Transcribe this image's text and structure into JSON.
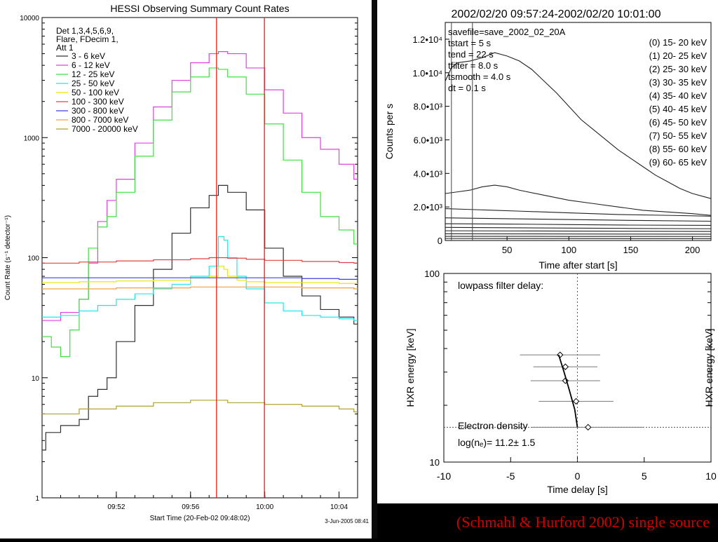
{
  "caption": "(Schmahl & Hurford 2002) single source",
  "chart_data": [
    {
      "type": "line",
      "title": "HESSI Observing Summary Count Rates",
      "xlabel": "Start Time (20-Feb-02 09:48:02)",
      "ylabel": "Count Rate (s⁻¹ detector⁻¹)",
      "footer": "3-Jun-2005 08:41",
      "yscale": "log",
      "ylim": [
        1,
        10000
      ],
      "xlim_min": [
        0,
        17
      ],
      "x_tick_labels": [
        "09:52",
        "09:56",
        "10:00",
        "10:04"
      ],
      "x_tick_values": [
        4,
        8,
        12,
        16
      ],
      "y_tick_labels": [
        "1",
        "10",
        "100",
        "1000",
        "10000"
      ],
      "y_tick_values": [
        1,
        10,
        100,
        1000,
        10000
      ],
      "legend_header": [
        "Det 1,3,4,5,6,9,",
        "Flare, FDecim 1,",
        "Att 1"
      ],
      "vertical_markers_min": [
        9.4,
        11.98
      ],
      "marker_color": "#e02020",
      "series": [
        {
          "name": "3 - 6 keV",
          "color": "#303030",
          "x": [
            0,
            0.2,
            1,
            1.6,
            2,
            2.5,
            3,
            3.5,
            4,
            5,
            6,
            7,
            8,
            9,
            9.5,
            10,
            11,
            12,
            13,
            14,
            15,
            16,
            16.8
          ],
          "y": [
            2.5,
            3.5,
            4,
            4,
            4.5,
            7,
            8,
            10,
            20,
            40,
            80,
            160,
            260,
            330,
            400,
            350,
            250,
            120,
            70,
            48,
            37,
            32,
            28
          ]
        },
        {
          "name": "6 - 12 keV",
          "color": "#e040e0",
          "x": [
            0,
            1,
            2,
            2.5,
            3,
            3.5,
            4,
            5,
            6,
            7,
            8,
            9,
            9.5,
            10,
            11,
            12,
            13,
            14,
            15,
            16,
            16.8
          ],
          "y": [
            30,
            35,
            45,
            90,
            200,
            300,
            450,
            900,
            1800,
            3000,
            4200,
            5000,
            5200,
            5000,
            3800,
            2500,
            1600,
            1000,
            800,
            600,
            450
          ]
        },
        {
          "name": "12 - 25 keV",
          "color": "#40e040",
          "x": [
            0,
            0.5,
            1,
            1.5,
            2,
            2.5,
            3,
            3.5,
            4,
            5,
            6,
            7,
            8,
            9,
            9.5,
            10,
            11,
            12,
            13,
            14,
            15,
            16,
            16.8
          ],
          "y": [
            22,
            18,
            15,
            25,
            45,
            120,
            180,
            220,
            350,
            700,
            1400,
            2400,
            3200,
            3800,
            3700,
            3200,
            2300,
            1300,
            650,
            350,
            220,
            170,
            130
          ]
        },
        {
          "name": "25 - 50 keV",
          "color": "#20e8e8",
          "x": [
            0,
            1,
            2,
            3,
            4,
            5,
            6,
            7,
            8,
            9,
            9.5,
            9.8,
            10,
            10.5,
            11,
            12,
            13,
            14,
            15,
            16,
            16.8
          ],
          "y": [
            32,
            33,
            36,
            40,
            45,
            50,
            55,
            60,
            70,
            85,
            150,
            140,
            100,
            70,
            55,
            42,
            36,
            33,
            32,
            31,
            30
          ]
        },
        {
          "name": "50 - 100 keV",
          "color": "#e8e800",
          "x": [
            0,
            2,
            4,
            6,
            8,
            9,
            9.5,
            9.8,
            10,
            10.5,
            11,
            12,
            14,
            16,
            16.8
          ],
          "y": [
            62,
            63,
            64,
            65,
            68,
            70,
            85,
            80,
            70,
            65,
            63,
            62,
            62,
            61,
            61
          ]
        },
        {
          "name": "100 - 300 keV",
          "color": "#e04040",
          "x": [
            0,
            2,
            4,
            6,
            8,
            9,
            10,
            11,
            12,
            14,
            16,
            16.8
          ],
          "y": [
            90,
            92,
            94,
            96,
            98,
            100,
            99,
            97,
            95,
            93,
            91,
            90
          ]
        },
        {
          "name": "300 - 800 keV",
          "color": "#4040e0",
          "x": [
            0,
            2,
            4,
            6,
            8,
            10,
            12,
            14,
            16,
            16.8
          ],
          "y": [
            68,
            68,
            68,
            68,
            68,
            68,
            68,
            67,
            66,
            66
          ]
        },
        {
          "name": "800 - 7000 keV",
          "color": "#f0a040",
          "x": [
            0,
            2,
            4,
            6,
            8,
            10,
            12,
            14,
            16,
            16.8
          ],
          "y": [
            55,
            55,
            56,
            56,
            57,
            57,
            57,
            56,
            56,
            55
          ]
        },
        {
          "name": "7000 - 20000 keV",
          "color": "#b0a030",
          "x": [
            0,
            2,
            4,
            6,
            8,
            10,
            12,
            14,
            16,
            16.8
          ],
          "y": [
            5,
            5.5,
            5.8,
            6.2,
            6.5,
            6.2,
            6,
            5.8,
            5.5,
            5.2
          ]
        }
      ]
    },
    {
      "type": "line",
      "title": "2002/02/20 09:57:24-2002/02/20 10:01:00",
      "xlabel": "Time after start [s]",
      "ylabel": "Counts per s",
      "xlim": [
        0,
        215
      ],
      "ylim": [
        0,
        13000
      ],
      "x_tick_labels": [
        "50",
        "100",
        "150",
        "200"
      ],
      "x_tick_values": [
        50,
        100,
        150,
        200
      ],
      "y_tick_labels": [
        "0",
        "2.0•10³",
        "4.0•10³",
        "6.0•10³",
        "8.0•10³",
        "1.0•10⁴",
        "1.2•10⁴"
      ],
      "y_tick_values": [
        0,
        2000,
        4000,
        6000,
        8000,
        10000,
        12000
      ],
      "info_text": [
        "savefile=save_2002_02_20A",
        "tstart  =    5 s",
        "tend    =   22 s",
        "tfilter =  8.0 s",
        "tsmooth =  4.0 s",
        "dt      =  0.1 s"
      ],
      "legend": [
        "(0)  15- 20 keV",
        "(1)  20- 25 keV",
        "(2)  25- 30 keV",
        "(3)  30- 35 keV",
        "(4)  35- 40 keV",
        "(5)  40- 45 keV",
        "(6)  45- 50 keV",
        "(7)  50- 55 keV",
        "(8)  55- 60 keV",
        "(9)  60- 65 keV"
      ],
      "vertical_markers_s": [
        5,
        22
      ],
      "series": [
        {
          "x": [
            0,
            5,
            10,
            20,
            30,
            40,
            50,
            60,
            70,
            80,
            90,
            100,
            110,
            120,
            130,
            140,
            150,
            160,
            170,
            180,
            190,
            200,
            210,
            215
          ],
          "y": [
            9500,
            10300,
            10600,
            10700,
            10900,
            11200,
            11000,
            10700,
            10200,
            9500,
            8800,
            8000,
            7200,
            6600,
            6000,
            5400,
            4900,
            4400,
            3900,
            3500,
            3100,
            2800,
            2600,
            2500
          ]
        },
        {
          "x": [
            0,
            10,
            20,
            30,
            40,
            50,
            60,
            80,
            100,
            120,
            140,
            160,
            180,
            200,
            215
          ],
          "y": [
            2800,
            2900,
            3000,
            3200,
            3300,
            3200,
            3000,
            2700,
            2400,
            2200,
            2000,
            1800,
            1700,
            1600,
            1500
          ]
        },
        {
          "x": [
            0,
            20,
            40,
            60,
            100,
            140,
            180,
            215
          ],
          "y": [
            1900,
            1850,
            1800,
            1750,
            1650,
            1550,
            1500,
            1450
          ]
        },
        {
          "x": [
            0,
            50,
            100,
            150,
            215
          ],
          "y": [
            1350,
            1300,
            1250,
            1200,
            1150
          ]
        },
        {
          "x": [
            0,
            50,
            100,
            150,
            215
          ],
          "y": [
            1000,
            980,
            950,
            920,
            900
          ]
        },
        {
          "x": [
            0,
            50,
            100,
            150,
            215
          ],
          "y": [
            780,
            760,
            740,
            720,
            700
          ]
        },
        {
          "x": [
            0,
            50,
            100,
            150,
            215
          ],
          "y": [
            580,
            570,
            560,
            550,
            540
          ]
        },
        {
          "x": [
            0,
            50,
            100,
            150,
            215
          ],
          "y": [
            400,
            395,
            390,
            385,
            380
          ]
        },
        {
          "x": [
            0,
            50,
            100,
            150,
            215
          ],
          "y": [
            250,
            248,
            245,
            242,
            240
          ]
        },
        {
          "x": [
            0,
            50,
            100,
            150,
            215
          ],
          "y": [
            120,
            118,
            116,
            114,
            112
          ]
        }
      ]
    },
    {
      "type": "scatter",
      "title": "lowpass filter delay:",
      "xlabel": "Time delay [s]",
      "ylabel": "HXR energy [keV]",
      "ylabel_right": "HXR energy [keV]",
      "yscale": "log",
      "xlim": [
        -10,
        10
      ],
      "ylim": [
        10,
        100
      ],
      "x_tick_labels": [
        "-10",
        "-5",
        "0",
        "5",
        "10"
      ],
      "x_tick_values": [
        -10,
        -5,
        0,
        5,
        10
      ],
      "y_tick_labels": [
        "10",
        "100"
      ],
      "y_tick_values": [
        10,
        100
      ],
      "annotation_lines": [
        "Electron density",
        "log(nₑ)=  11.2±  1.5"
      ],
      "points": [
        {
          "x": -1.3,
          "y": 37,
          "xerr": 3.0
        },
        {
          "x": -0.9,
          "y": 32,
          "xerr": 2.4
        },
        {
          "x": -0.9,
          "y": 27,
          "xerr": 2.6
        },
        {
          "x": -0.1,
          "y": 21,
          "xerr": 2.8
        },
        {
          "x": 0.8,
          "y": 15.3,
          "xerr": 4.2
        }
      ],
      "fit_curve": {
        "x": [
          -1.4,
          -1.0,
          -0.6,
          -0.2,
          0.0
        ],
        "y": [
          37,
          30,
          24,
          19,
          15.3
        ]
      },
      "reference_hline_y": 15.3,
      "reference_vline_x": 0
    }
  ]
}
